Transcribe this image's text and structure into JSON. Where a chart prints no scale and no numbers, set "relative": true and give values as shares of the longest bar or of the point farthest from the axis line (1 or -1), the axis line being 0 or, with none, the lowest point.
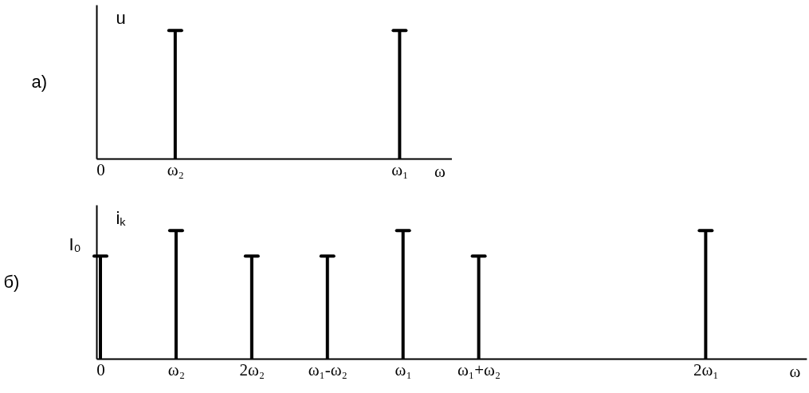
{
  "chart_data": [
    {
      "type": "bar",
      "relative": true,
      "title": "а)",
      "ylabel": "u",
      "xlabel": "ω",
      "categories": [
        "0",
        "ω₂",
        null,
        null,
        "ω₁"
      ],
      "values": [
        null,
        1,
        null,
        null,
        1
      ],
      "color": "#000000"
    },
    {
      "type": "bar",
      "relative": true,
      "title": "б)",
      "ylabel": "iₖ",
      "xlabel": "ω",
      "categories": [
        "0",
        "ω₂",
        "2ω₂",
        "ω₁-ω₂",
        "ω₁",
        "ω₁+ω₂",
        null,
        null,
        "2ω₁"
      ],
      "values": [
        0.8,
        1,
        0.8,
        0.8,
        1,
        0.8,
        null,
        null,
        1
      ],
      "color": "#000000",
      "annotations": [
        {
          "text": "I₀",
          "x": "0",
          "y": 0.8
        }
      ]
    }
  ]
}
